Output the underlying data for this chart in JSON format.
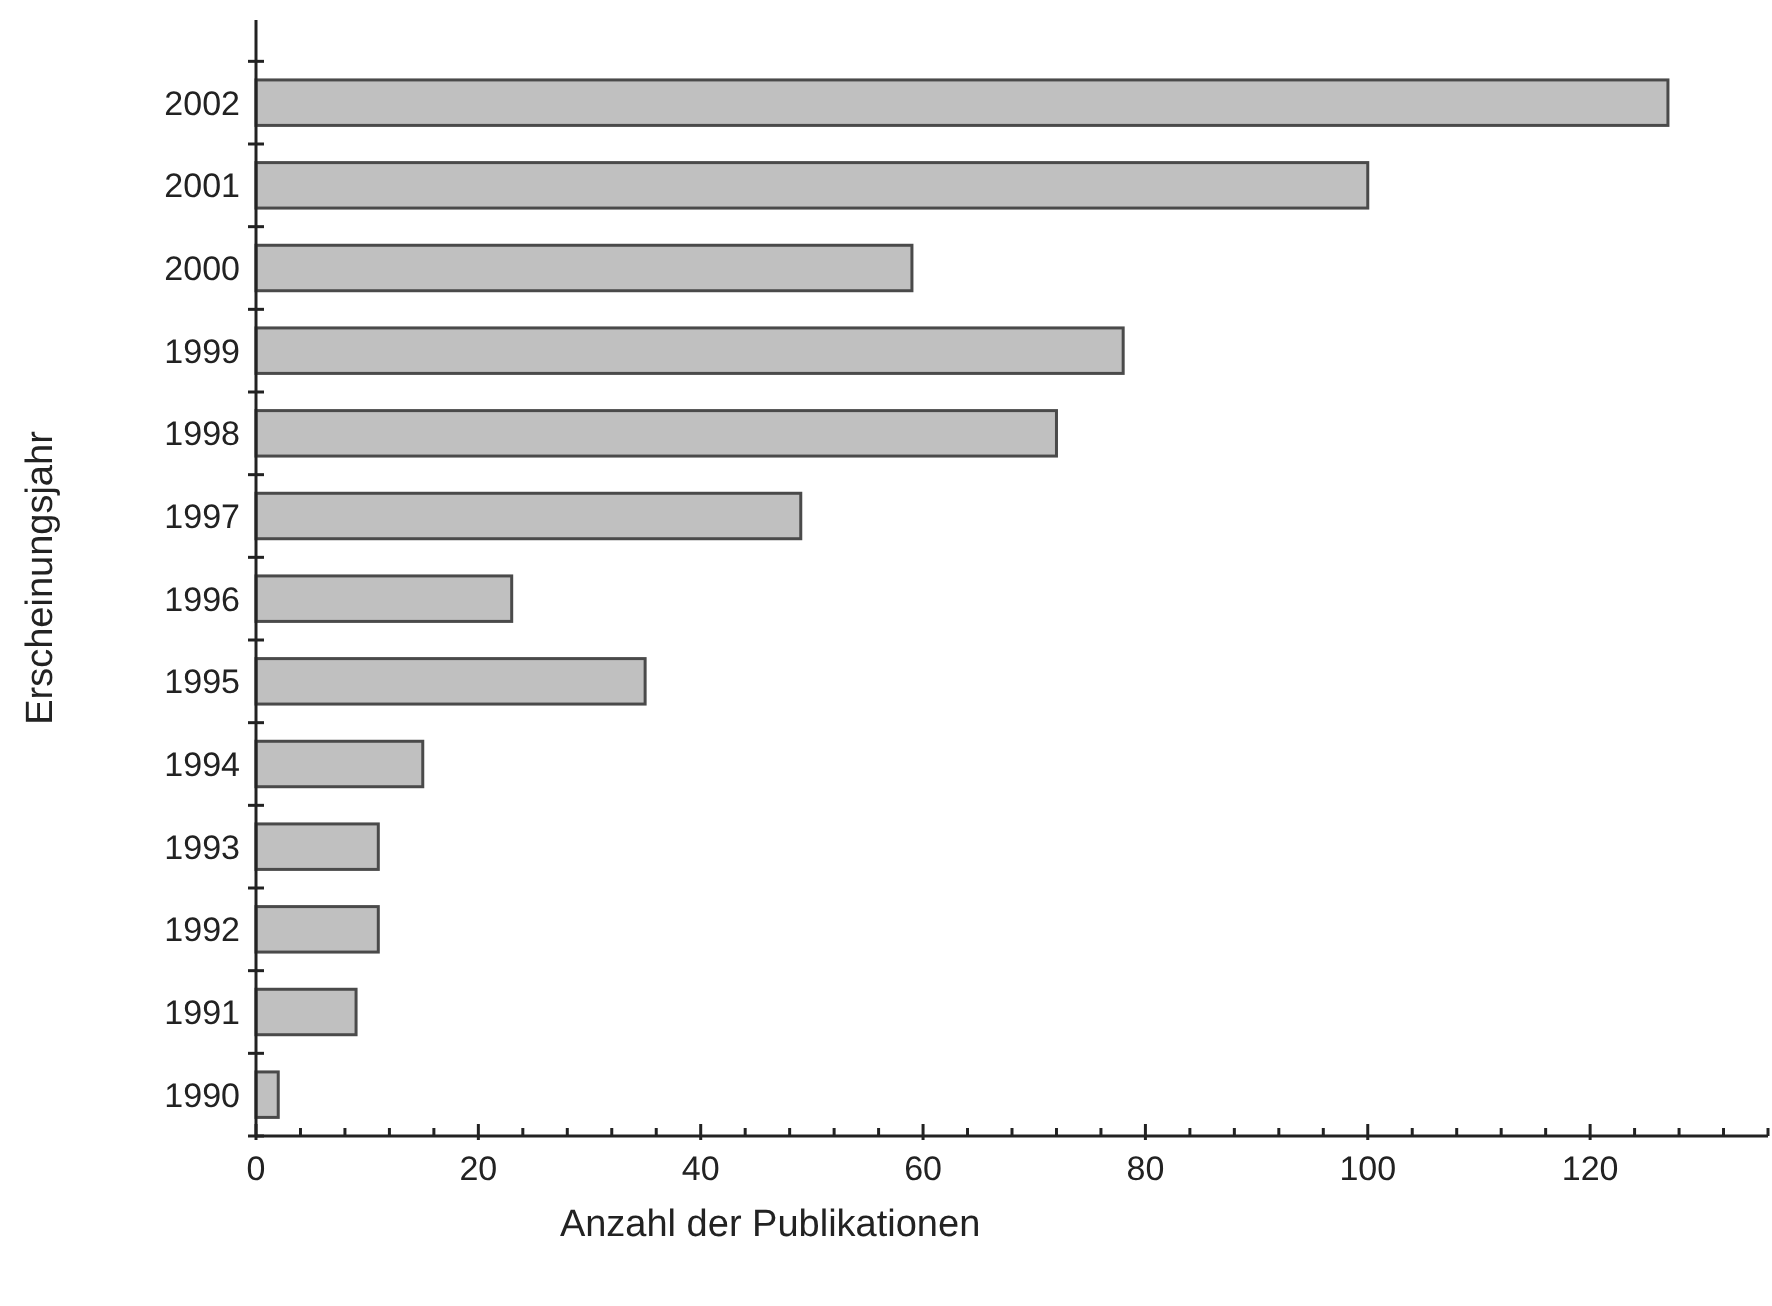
{
  "chart_data": {
    "type": "bar",
    "orientation": "horizontal",
    "xlabel": "Anzahl der Publikationen",
    "ylabel": "Erscheinungsjahr",
    "categories": [
      "2002",
      "2001",
      "2000",
      "1999",
      "1998",
      "1997",
      "1996",
      "1995",
      "1994",
      "1993",
      "1992",
      "1991",
      "1990"
    ],
    "values": [
      127,
      100,
      59,
      78,
      72,
      49,
      23,
      35,
      15,
      11,
      11,
      9,
      2
    ],
    "color": "#c0c0c0",
    "xlim": [
      0,
      136
    ],
    "xticks": [
      0,
      {
        "value": 4,
        "label": null
      },
      {
        "value": 8,
        "label": null
      },
      {
        "value": 12,
        "label": null
      },
      {
        "value": 16,
        "label": null
      },
      20,
      {
        "value": 24,
        "label": null
      },
      {
        "value": 28,
        "label": null
      },
      {
        "value": 32,
        "label": null
      },
      {
        "value": 36,
        "label": null
      },
      40,
      {
        "value": 44,
        "label": null
      },
      {
        "value": 48,
        "label": null
      },
      {
        "value": 52,
        "label": null
      },
      {
        "value": 56,
        "label": null
      },
      60,
      {
        "value": 64,
        "label": null
      },
      {
        "value": 68,
        "label": null
      },
      {
        "value": 72,
        "label": null
      },
      {
        "value": 76,
        "label": null
      },
      80,
      {
        "value": 84,
        "label": null
      },
      {
        "value": 88,
        "label": null
      },
      {
        "value": 92,
        "label": null
      },
      {
        "value": 96,
        "label": null
      },
      100,
      {
        "value": 104,
        "label": null
      },
      {
        "value": 108,
        "label": null
      },
      {
        "value": 112,
        "label": null
      },
      {
        "value": 116,
        "label": null
      },
      120,
      {
        "value": 124,
        "label": null
      },
      {
        "value": 128,
        "label": null
      },
      {
        "value": 132,
        "label": null
      },
      {
        "value": 136,
        "label": null
      }
    ],
    "grid": false
  }
}
